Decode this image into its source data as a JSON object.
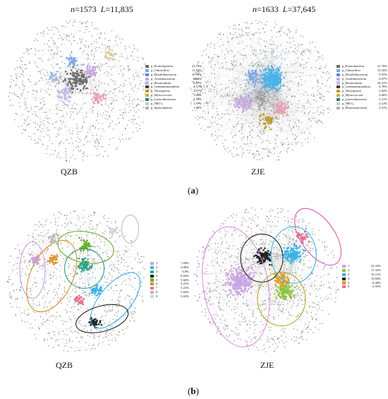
{
  "panel_a": {
    "qzb": {
      "n_label": "n",
      "n_value": "=1573",
      "l_label": "L",
      "l_value": "=11,835",
      "caption": "QZB",
      "legend": [
        {
          "label": "p_Proteobacteria",
          "value": "27.72%",
          "color": "#6b6b6b"
        },
        {
          "label": "p_Chloroflexi",
          "value": "11.82%",
          "color": "#7aa7e8"
        },
        {
          "label": "p_Desulfobacterota",
          "value": "10.93%",
          "color": "#5e86c9"
        },
        {
          "label": "p_Acidobacteriota",
          "value": "8.26%",
          "color": "#c7a8dd"
        },
        {
          "label": "p_Bacteroidota",
          "value": "6.87%",
          "color": "#c8b7e6"
        },
        {
          "label": "p_Gemmatimonadota",
          "value": "4.51%",
          "color": "#3e3e3e"
        },
        {
          "label": "p_Nitrospirota",
          "value": "3.37%",
          "color": "#b89b2a"
        },
        {
          "label": "p_Myxococcota",
          "value": "3.05%",
          "color": "#d6a64a"
        },
        {
          "label": "p_Latescibacterota",
          "value": "2.35%",
          "color": "#2f7f6c"
        },
        {
          "label": "p_NB1-j",
          "value": "1.97%",
          "color": "#c9c9c9"
        },
        {
          "label": "p_Spirochaetota",
          "value": "1.72%",
          "color": "#b0b0b0"
        }
      ]
    },
    "zje": {
      "n_label": "n",
      "n_value": "=1633",
      "l_label": "L",
      "l_value": "=37,645",
      "caption": "ZJE",
      "legend": [
        {
          "label": "p_Proteobacteria",
          "value": "21.70%",
          "color": "#6b6b6b"
        },
        {
          "label": "p_Chloroflexi",
          "value": "13.35%",
          "color": "#7aa7e8"
        },
        {
          "label": "p_Desulfobacterota",
          "value": "9.55%",
          "color": "#5e86c9"
        },
        {
          "label": "p_Acidobacteriota",
          "value": "6.67%",
          "color": "#c7a8dd"
        },
        {
          "label": "p_Bacteroidota",
          "value": "10.47%",
          "color": "#c8b7e6"
        },
        {
          "label": "p_Gemmatimonadota",
          "value": "4.78%",
          "color": "#3e3e3e"
        },
        {
          "label": "p_Nitrospirota",
          "value": "2.82%",
          "color": "#b89b2a"
        },
        {
          "label": "p_Myxococcota",
          "value": "3.06%",
          "color": "#d6a64a"
        },
        {
          "label": "p_Latescibacterota",
          "value": "3.31%",
          "color": "#2f7f6c"
        },
        {
          "label": "p_NB1-j",
          "value": "2.14%",
          "color": "#c9c9c9"
        },
        {
          "label": "p_Planctomycetota",
          "value": "2.51%",
          "color": "#b0b0b0"
        }
      ]
    },
    "panel_label": "a"
  },
  "panel_b": {
    "qzb": {
      "caption": "QZB",
      "legend": [
        {
          "label": "1",
          "value": "7.69%",
          "color": "#c9a3e3"
        },
        {
          "label": "2",
          "value": "6.99%",
          "color": "#39b3ea"
        },
        {
          "label": "3",
          "value": "6.8%",
          "color": "#2fa18f"
        },
        {
          "label": "4",
          "value": "6.04%",
          "color": "#222222"
        },
        {
          "label": "5",
          "value": "5.66%",
          "color": "#6ab02b"
        },
        {
          "label": "6",
          "value": "5.21%",
          "color": "#d9901e"
        },
        {
          "label": "7",
          "value": "5.21%",
          "color": "#e5738f"
        },
        {
          "label": "8",
          "value": "5.02%",
          "color": "#b9b9b9"
        },
        {
          "label": "9",
          "value": "5.02%",
          "color": "#d3d3d3"
        }
      ]
    },
    "zje": {
      "caption": "ZJE",
      "legend": [
        {
          "label": "1",
          "value": "32.33%",
          "color": "#c9a3e3"
        },
        {
          "label": "2",
          "value": "17.33%",
          "color": "#8cc63f"
        },
        {
          "label": "3",
          "value": "16.11%",
          "color": "#39b3ea"
        },
        {
          "label": "4",
          "value": "13.84%",
          "color": "#222222"
        },
        {
          "label": "5",
          "value": "8.49%",
          "color": "#e89a1f"
        },
        {
          "label": "6",
          "value": "6.55%",
          "color": "#e5738f"
        }
      ]
    },
    "panel_label": "b"
  }
}
